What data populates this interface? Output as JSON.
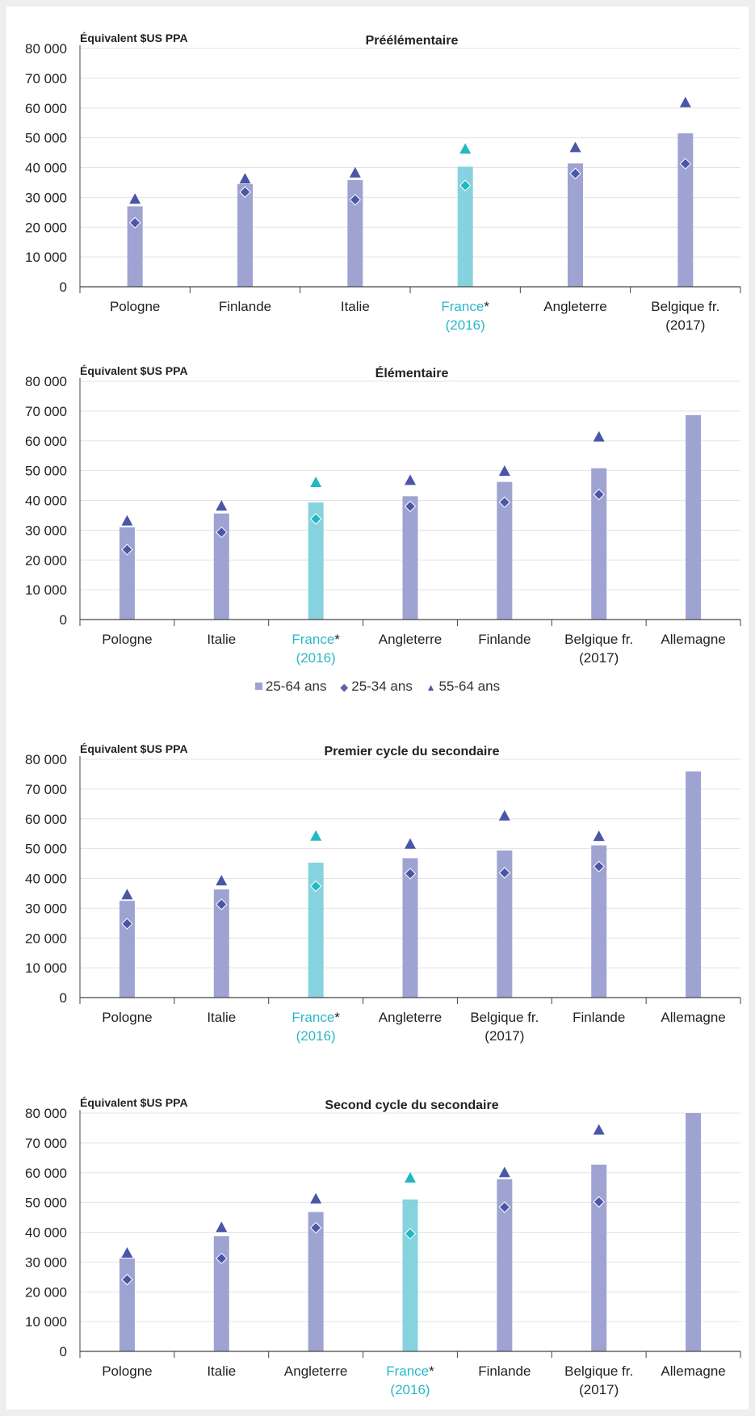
{
  "colors": {
    "bar": "#9ea3d2",
    "bar_highlight": "#86d3df",
    "marker": "#4a56a6",
    "marker_highlight": "#1fb8c4",
    "label_highlight": "#2bb7c9",
    "axis": "#444444",
    "grid": "#e3e3e3"
  },
  "legend": {
    "items": [
      {
        "label": "25-64 ans",
        "icon": "square-icon"
      },
      {
        "label": "25-34 ans",
        "icon": "diamond-icon"
      },
      {
        "label": "55-64 ans",
        "icon": "triangle-icon"
      }
    ]
  },
  "chart_data": [
    {
      "type": "bar",
      "title": "Préélémentaire",
      "ylabel": "Équivalent $US PPA",
      "ylim": [
        0,
        80000
      ],
      "yticks": [
        "0",
        "10 000",
        "20 000",
        "30 000",
        "40 000",
        "50 000",
        "60 000",
        "70 000",
        "80 000"
      ],
      "categories": [
        {
          "name": "Pologne",
          "year": "",
          "star": ""
        },
        {
          "name": "Finlande",
          "year": "",
          "star": ""
        },
        {
          "name": "Italie",
          "year": "",
          "star": ""
        },
        {
          "name": "France",
          "year": "(2016)",
          "star": "*"
        },
        {
          "name": "Angleterre",
          "year": "",
          "star": ""
        },
        {
          "name": "Belgique fr.",
          "year": "(2017)",
          "star": ""
        }
      ],
      "highlight": 3,
      "series": [
        {
          "name": "25-64 ans",
          "values": [
            27000,
            34500,
            35800,
            40300,
            41400,
            51500
          ]
        },
        {
          "name": "25-34 ans",
          "values": [
            21500,
            31800,
            29200,
            34000,
            38000,
            41300
          ]
        },
        {
          "name": "55-64 ans",
          "values": [
            29500,
            36300,
            38300,
            46300,
            46800,
            61900
          ]
        }
      ],
      "grid": true
    },
    {
      "type": "bar",
      "title": "Élémentaire",
      "ylabel": "Équivalent $US PPA",
      "ylim": [
        0,
        80000
      ],
      "yticks": [
        "0",
        "10 000",
        "20 000",
        "30 000",
        "40 000",
        "50 000",
        "60 000",
        "70 000",
        "80 000"
      ],
      "categories": [
        {
          "name": "Pologne",
          "year": "",
          "star": ""
        },
        {
          "name": "Italie",
          "year": "",
          "star": ""
        },
        {
          "name": "France",
          "year": "(2016)",
          "star": "*"
        },
        {
          "name": "Angleterre",
          "year": "",
          "star": ""
        },
        {
          "name": "Finlande",
          "year": "",
          "star": ""
        },
        {
          "name": "Belgique fr.",
          "year": "(2017)",
          "star": ""
        },
        {
          "name": "Allemagne",
          "year": "",
          "star": ""
        }
      ],
      "highlight": 2,
      "series": [
        {
          "name": "25-64 ans",
          "values": [
            31000,
            35600,
            39300,
            41400,
            46200,
            50800,
            68600
          ]
        },
        {
          "name": "25-34 ans",
          "values": [
            23500,
            29300,
            33800,
            38000,
            39400,
            42000,
            null
          ]
        },
        {
          "name": "55-64 ans",
          "values": [
            33200,
            38200,
            46100,
            46800,
            49900,
            61400,
            null
          ]
        }
      ],
      "grid": true
    },
    {
      "type": "bar",
      "title": "Premier cycle du secondaire",
      "ylabel": "Équivalent $US PPA",
      "ylim": [
        0,
        80000
      ],
      "yticks": [
        "0",
        "10 000",
        "20 000",
        "30 000",
        "40 000",
        "50 000",
        "60 000",
        "70 000",
        "80 000"
      ],
      "categories": [
        {
          "name": "Pologne",
          "year": "",
          "star": ""
        },
        {
          "name": "Italie",
          "year": "",
          "star": ""
        },
        {
          "name": "France",
          "year": "(2016)",
          "star": "*"
        },
        {
          "name": "Angleterre",
          "year": "",
          "star": ""
        },
        {
          "name": "Belgique fr.",
          "year": "(2017)",
          "star": ""
        },
        {
          "name": "Finlande",
          "year": "",
          "star": ""
        },
        {
          "name": "Allemagne",
          "year": "",
          "star": ""
        }
      ],
      "highlight": 2,
      "series": [
        {
          "name": "25-64 ans",
          "values": [
            32500,
            36300,
            45300,
            46800,
            49400,
            51100,
            75900
          ]
        },
        {
          "name": "25-34 ans",
          "values": [
            24800,
            31300,
            37400,
            41600,
            41900,
            44000,
            null
          ]
        },
        {
          "name": "55-64 ans",
          "values": [
            34600,
            39300,
            54300,
            51600,
            61100,
            54200,
            null
          ]
        }
      ],
      "grid": true
    },
    {
      "type": "bar",
      "title": "Second cycle du secondaire",
      "ylabel": "Équivalent $US PPA",
      "ylim": [
        0,
        80000
      ],
      "yticks": [
        "0",
        "10 000",
        "20 000",
        "30 000",
        "40 000",
        "50 000",
        "60 000",
        "70 000",
        "80 000"
      ],
      "categories": [
        {
          "name": "Pologne",
          "year": "",
          "star": ""
        },
        {
          "name": "Italie",
          "year": "",
          "star": ""
        },
        {
          "name": "Angleterre",
          "year": "",
          "star": ""
        },
        {
          "name": "France",
          "year": "(2016)",
          "star": "*"
        },
        {
          "name": "Finlande",
          "year": "",
          "star": ""
        },
        {
          "name": "Belgique fr.",
          "year": "(2017)",
          "star": ""
        },
        {
          "name": "Allemagne",
          "year": "",
          "star": ""
        }
      ],
      "highlight": 3,
      "series": [
        {
          "name": "25-64 ans",
          "values": [
            31200,
            38700,
            46800,
            51000,
            57800,
            62700,
            80000
          ]
        },
        {
          "name": "25-34 ans",
          "values": [
            24100,
            31200,
            41500,
            39500,
            48400,
            50200,
            null
          ]
        },
        {
          "name": "55-64 ans",
          "values": [
            33100,
            41700,
            51300,
            58300,
            60100,
            74400,
            null
          ]
        }
      ],
      "grid": true
    }
  ]
}
